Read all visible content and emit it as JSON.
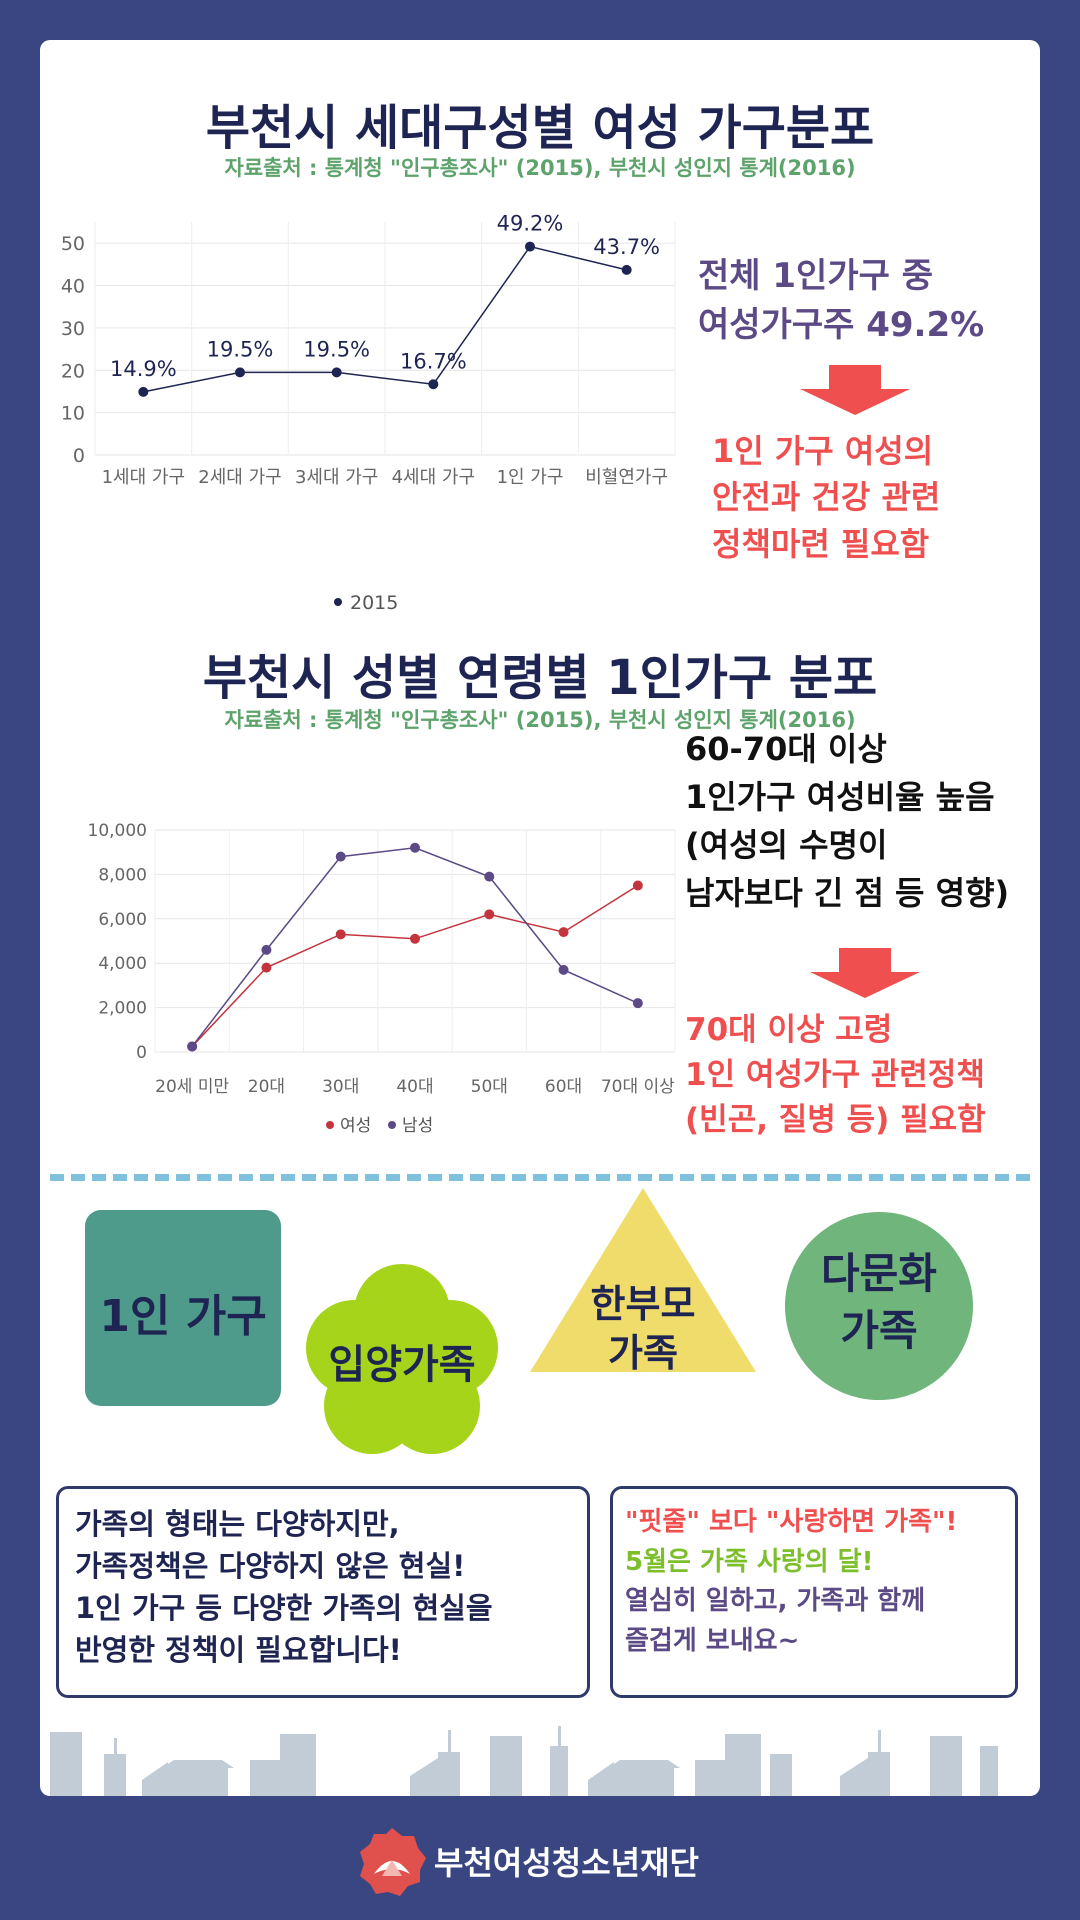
{
  "section1": {
    "title": "부천시 세대구성별 여성 가구분포",
    "source": "자료출처 : 통계청 \"인구총조사\" (2015), 부천시 성인지 통계(2016)",
    "note_line1": "전체 1인가구 중",
    "note_line2": "여성가구주 49.2%",
    "conclusion_line1": "1인 가구 여성의",
    "conclusion_line2": "안전과 건강 관련",
    "conclusion_line3": "정책마련 필요함"
  },
  "section2": {
    "title": "부천시 성별 연령별 1인가구 분포",
    "source": "자료출처 : 통계청 \"인구총조사\" (2015), 부천시 성인지 통계(2016)",
    "note_line1": "60-70대 이상",
    "note_line2": "1인가구 여성비율 높음",
    "note_line3": "(여성의 수명이",
    "note_line4": "남자보다 긴 점 등 영향)",
    "conclusion_line1": "70대 이상 고령",
    "conclusion_line2": "1인 여성가구 관련정책",
    "conclusion_line3": "(빈곤, 질병 등) 필요함"
  },
  "chart_data": [
    {
      "type": "line",
      "categories": [
        "1세대 가구",
        "2세대 가구",
        "3세대 가구",
        "4세대 가구",
        "1인 가구",
        "비혈연가구"
      ],
      "series": [
        {
          "name": "2015",
          "values": [
            14.9,
            19.5,
            19.5,
            16.7,
            49.2,
            43.7
          ]
        }
      ],
      "data_labels": [
        "14.9%",
        "19.5%",
        "19.5%",
        "16.7%",
        "49.2%",
        "43.7%"
      ],
      "y_ticks": [
        0,
        10,
        20,
        30,
        40,
        50
      ],
      "ylim": [
        0,
        55
      ],
      "grid": true,
      "legend": "bottom",
      "color": "#1f2552"
    },
    {
      "type": "line",
      "categories": [
        "20세 미만",
        "20대",
        "30대",
        "40대",
        "50대",
        "60대",
        "70대 이상"
      ],
      "series": [
        {
          "name": "여성",
          "values": [
            250,
            3800,
            5300,
            5100,
            6200,
            5400,
            7500
          ],
          "color": "#c4343f"
        },
        {
          "name": "남성",
          "values": [
            250,
            4600,
            8800,
            9200,
            7900,
            3700,
            2200
          ],
          "color": "#5b4a86"
        }
      ],
      "y_ticks": [
        0,
        2000,
        4000,
        6000,
        8000,
        10000
      ],
      "y_tick_labels": [
        "0",
        "2,000",
        "4,000",
        "6,000",
        "8,000",
        "10,000"
      ],
      "ylim": [
        0,
        10000
      ],
      "grid": true,
      "legend": "bottom"
    }
  ],
  "families": {
    "single": "1인 가구",
    "adoptive": "입양가족",
    "single_parent_line1": "한부모",
    "single_parent_line2": "가족",
    "multicultural_line1": "다문화",
    "multicultural_line2": "가족"
  },
  "box_left": {
    "line1": "가족의 형태는 다양하지만,",
    "line2": "가족정책은 다양하지 않은 현실!",
    "line3": "1인 가구 등 다양한 가족의 현실을",
    "line4": "반영한 정책이 필요합니다!"
  },
  "box_right": {
    "line1": "\"핏줄\" 보다 \"사랑하면 가족\"!",
    "line2": "5월은 가족 사랑의 달!",
    "line3": "열심히 일하고, 가족과 함께",
    "line4": "즐겁게 보내요~"
  },
  "footer": {
    "org": "부천여성청소년재단"
  },
  "colors": {
    "background": "#3a4682",
    "navy": "#1f2552",
    "red": "#ef4f4f",
    "green": "#5fa36c",
    "teal": "#4e9b8c",
    "lime": "#a6d41a",
    "yellow": "#f0dc6a",
    "circle_green": "#6fb57c",
    "dash": "#7fc1dd"
  }
}
